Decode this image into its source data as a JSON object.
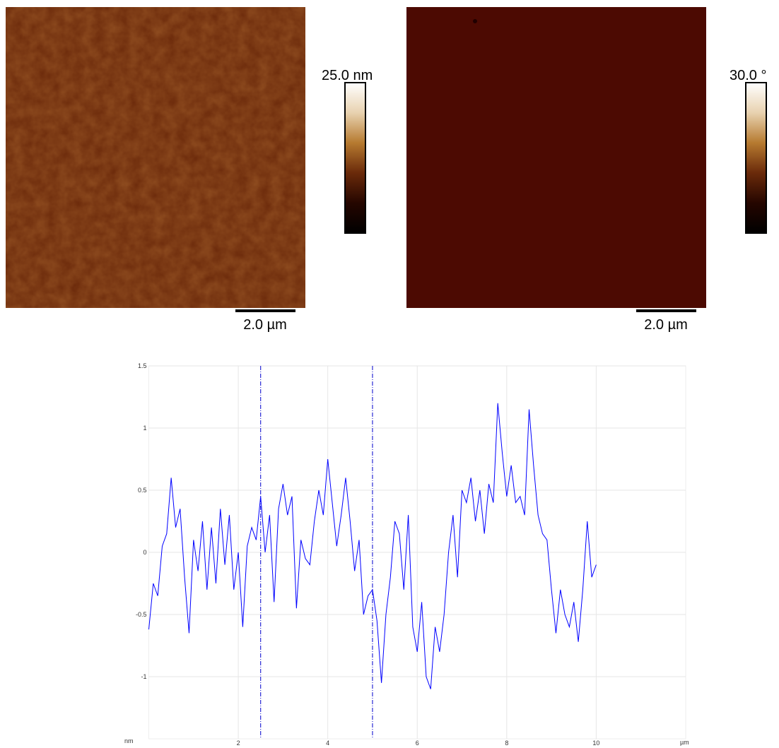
{
  "images": [
    {
      "colorbar_label": "25.0 nm",
      "scale_bar": "2.0 µm"
    },
    {
      "colorbar_label": "30.0 °",
      "scale_bar": "2.0 µm"
    }
  ],
  "chart_data": {
    "type": "line",
    "x_label": "µm",
    "y_label": "nm",
    "x": [
      0,
      0.1,
      0.2,
      0.3,
      0.4,
      0.5,
      0.6,
      0.7,
      0.8,
      0.9,
      1,
      1.1,
      1.2,
      1.3,
      1.4,
      1.5,
      1.6,
      1.7,
      1.8,
      1.9,
      2,
      2.1,
      2.2,
      2.3,
      2.4,
      2.5,
      2.6,
      2.7,
      2.8,
      2.9,
      3,
      3.1,
      3.2,
      3.3,
      3.4,
      3.5,
      3.6,
      3.7,
      3.8,
      3.9,
      4,
      4.1,
      4.2,
      4.3,
      4.4,
      4.5,
      4.6,
      4.7,
      4.8,
      4.9,
      5,
      5.1,
      5.2,
      5.3,
      5.4,
      5.5,
      5.6,
      5.7,
      5.8,
      5.9,
      6,
      6.1,
      6.2,
      6.3,
      6.4,
      6.5,
      6.6,
      6.7,
      6.8,
      6.9,
      7,
      7.1,
      7.2,
      7.3,
      7.4,
      7.5,
      7.6,
      7.7,
      7.8,
      7.9,
      8,
      8.1,
      8.2,
      8.3,
      8.4,
      8.5,
      8.6,
      8.7,
      8.8,
      8.9,
      9,
      9.1,
      9.2,
      9.3,
      9.4,
      9.5,
      9.6,
      9.7,
      9.8,
      9.9,
      10
    ],
    "series": [
      {
        "color": "#0000ff",
        "values": [
          -0.62,
          -0.25,
          -0.35,
          0.05,
          0.15,
          0.6,
          0.2,
          0.35,
          -0.2,
          -0.65,
          0.1,
          -0.15,
          0.25,
          -0.3,
          0.2,
          -0.25,
          0.35,
          -0.1,
          0.3,
          -0.3,
          0.0,
          -0.6,
          0.05,
          0.2,
          0.1,
          0.45,
          0.0,
          0.3,
          -0.4,
          0.35,
          0.55,
          0.3,
          0.45,
          -0.45,
          0.1,
          -0.05,
          -0.1,
          0.25,
          0.5,
          0.3,
          0.75,
          0.4,
          0.05,
          0.3,
          0.6,
          0.25,
          -0.15,
          0.1,
          -0.5,
          -0.35,
          -0.3,
          -0.55,
          -1.05,
          -0.5,
          -0.2,
          0.25,
          0.15,
          -0.3,
          0.3,
          -0.6,
          -0.8,
          -0.4,
          -1.0,
          -1.1,
          -0.6,
          -0.8,
          -0.5,
          0.0,
          0.3,
          -0.2,
          0.5,
          0.4,
          0.6,
          0.25,
          0.5,
          0.15,
          0.55,
          0.4,
          1.2,
          0.8,
          0.45,
          0.7,
          0.4,
          0.45,
          0.3,
          1.15,
          0.7,
          0.3,
          0.15,
          0.1,
          -0.3,
          -0.65,
          -0.3,
          -0.5,
          -0.6,
          -0.4,
          -0.72,
          -0.3,
          0.25,
          -0.2,
          -0.1
        ]
      }
    ],
    "markers": [
      2.5,
      5.0
    ],
    "marker_color": "#0000cc",
    "xlim": [
      0,
      12
    ],
    "ylim": [
      -1.5,
      1.5
    ],
    "xticks": [
      2,
      4,
      6,
      8,
      10
    ],
    "yticks": [
      -1,
      -0.5,
      0,
      0.5,
      1,
      1.5
    ],
    "grid": true
  }
}
